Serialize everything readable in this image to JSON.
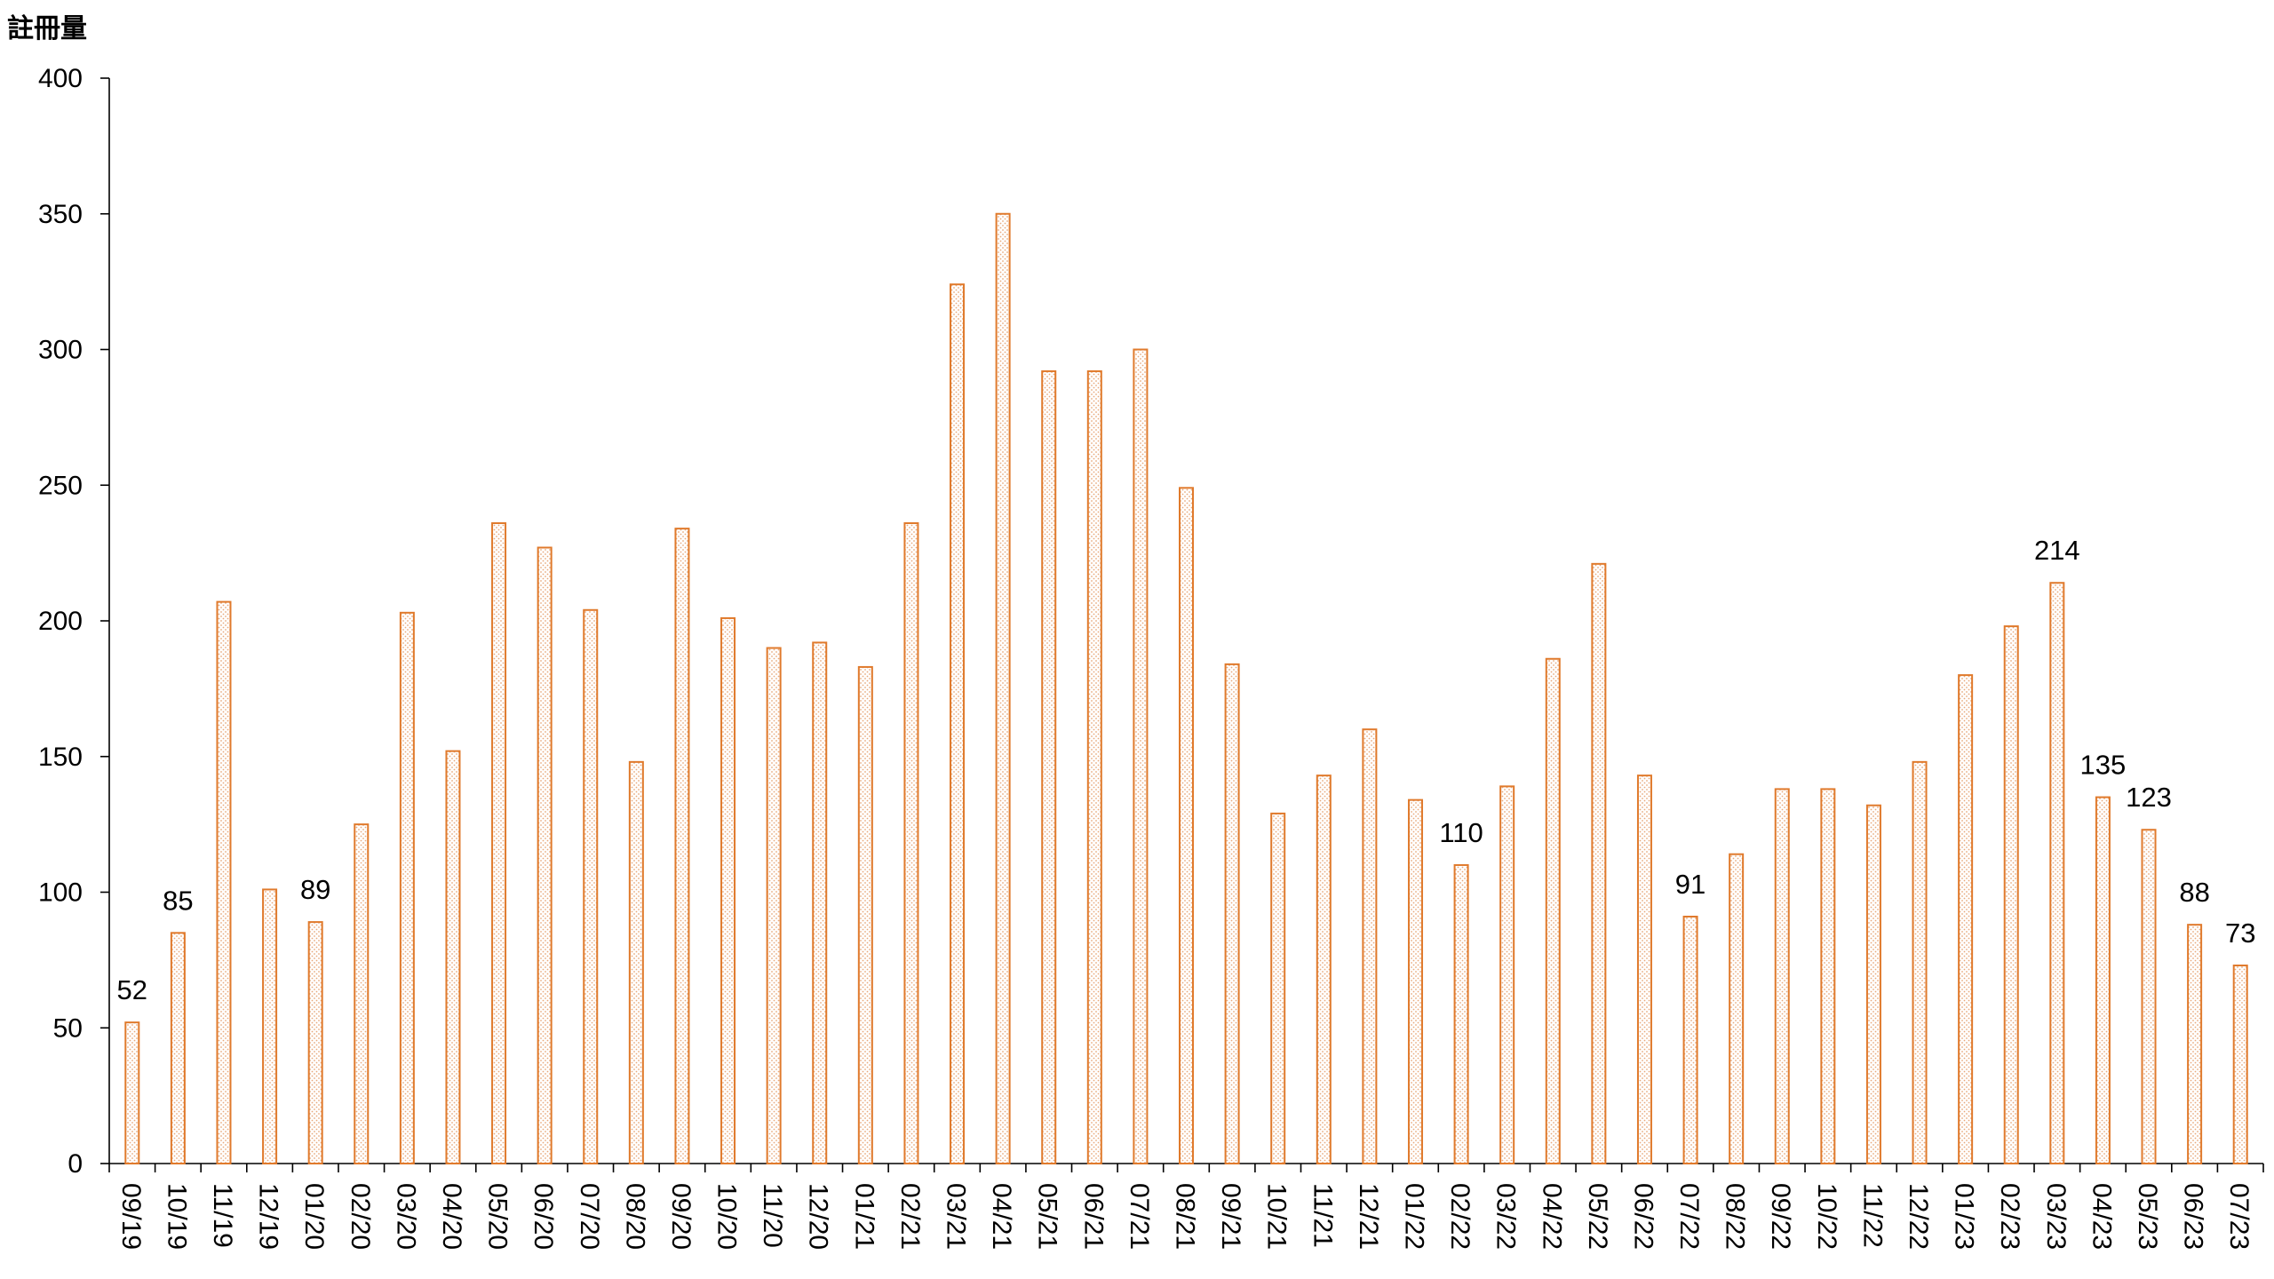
{
  "chart_data": {
    "type": "bar",
    "title": "",
    "xlabel": "",
    "ylabel": "註冊量",
    "ylim": [
      0,
      400
    ],
    "yticks": [
      0,
      50,
      100,
      150,
      200,
      250,
      300,
      350,
      400
    ],
    "grid": false,
    "legend": "none",
    "bar_color": "#e07a2c",
    "bar_fill_pattern": "dotted",
    "categories": [
      "09/19",
      "10/19",
      "11/19",
      "12/19",
      "01/20",
      "02/20",
      "03/20",
      "04/20",
      "05/20",
      "06/20",
      "07/20",
      "08/20",
      "09/20",
      "10/20",
      "11/20",
      "12/20",
      "01/21",
      "02/21",
      "03/21",
      "04/21",
      "05/21",
      "06/21",
      "07/21",
      "08/21",
      "09/21",
      "10/21",
      "11/21",
      "12/21",
      "01/22",
      "02/22",
      "03/22",
      "04/22",
      "05/22",
      "06/22",
      "07/22",
      "08/22",
      "09/22",
      "10/22",
      "11/22",
      "12/22",
      "01/23",
      "02/23",
      "03/23",
      "04/23",
      "05/23",
      "06/23",
      "07/23"
    ],
    "values": [
      52,
      85,
      207,
      101,
      89,
      125,
      203,
      152,
      236,
      227,
      204,
      148,
      234,
      201,
      190,
      192,
      183,
      236,
      324,
      350,
      292,
      292,
      300,
      249,
      184,
      129,
      143,
      160,
      134,
      110,
      139,
      186,
      221,
      143,
      91,
      114,
      138,
      138,
      132,
      148,
      180,
      198,
      214,
      135,
      123,
      88,
      73
    ],
    "data_labels": [
      {
        "category": "09/19",
        "text": "52"
      },
      {
        "category": "10/19",
        "text": "85"
      },
      {
        "category": "01/20",
        "text": "89"
      },
      {
        "category": "02/22",
        "text": "110"
      },
      {
        "category": "07/22",
        "text": "91"
      },
      {
        "category": "03/23",
        "text": "214"
      },
      {
        "category": "04/23",
        "text": "135"
      },
      {
        "category": "05/23",
        "text": "123"
      },
      {
        "category": "06/23",
        "text": "88"
      },
      {
        "category": "07/23",
        "text": "73"
      }
    ]
  }
}
